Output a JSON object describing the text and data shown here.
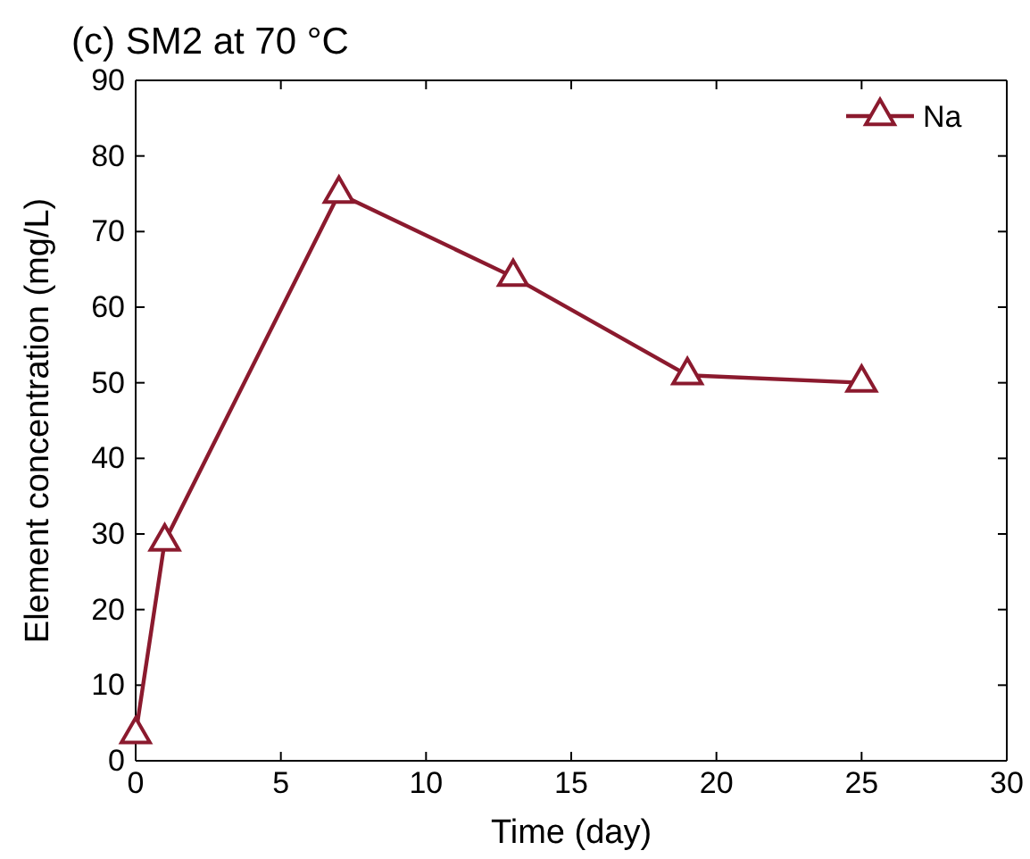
{
  "chart_data": {
    "type": "line",
    "title": "(c) SM2 at 70 °C",
    "xlabel": "Time (day)",
    "ylabel": "Element concentration (mg/L)",
    "x": [
      0,
      1,
      7,
      13,
      19,
      25
    ],
    "series": [
      {
        "name": "Na",
        "color": "#8b1a2e",
        "values": [
          3.5,
          29,
          75,
          64,
          51,
          50
        ]
      }
    ],
    "xlim": [
      0,
      30
    ],
    "xticks": [
      0,
      5,
      10,
      15,
      20,
      25,
      30
    ],
    "ylim": [
      0,
      90
    ],
    "yticks": [
      0,
      10,
      20,
      30,
      40,
      50,
      60,
      70,
      80,
      90
    ],
    "grid": false,
    "legend": "top right",
    "marker": "triangle",
    "line_style": "solid"
  }
}
